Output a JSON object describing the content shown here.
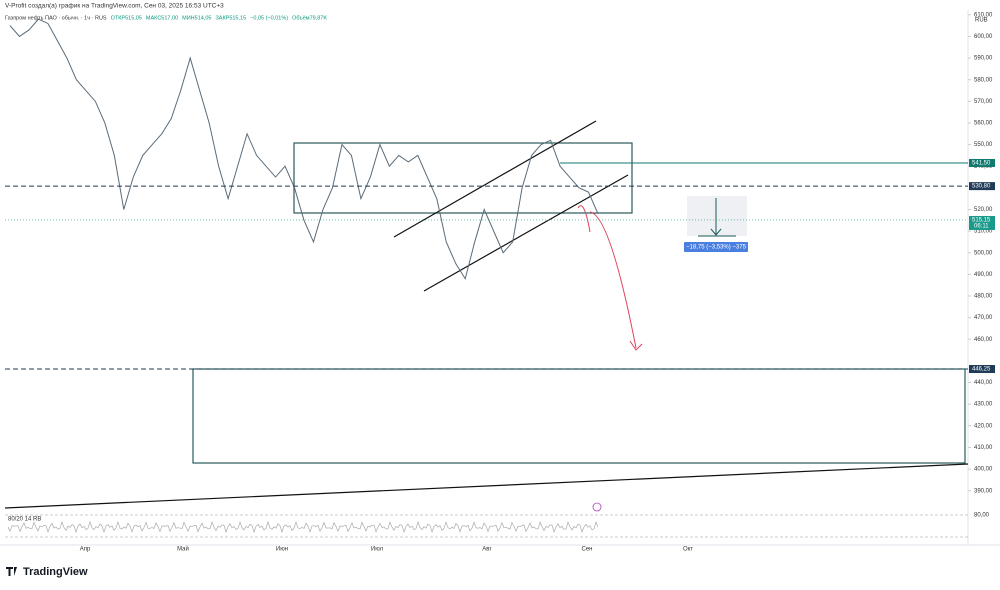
{
  "watermark": "V-Profit создал(а) график на TradingView.com, Сен 03, 2025 16:53 UTC+3",
  "legend": {
    "symbol": "Газпром нефть ПАО · обычн. · 1ч · RUS",
    "open": "ОТКР515,05",
    "high": "МАКС517,00",
    "low": "МИН514,05",
    "close": "ЗАКР515,15",
    "change": "−0,05 (−0,01%)",
    "volume": "Объём79,87K"
  },
  "currency": "RUB",
  "chart_data": {
    "type": "line",
    "color": "#5a6b78",
    "values": [
      605,
      600,
      603,
      608,
      606,
      598,
      590,
      580,
      575,
      570,
      560,
      545,
      520,
      535,
      545,
      550,
      555,
      562,
      575,
      590,
      575,
      560,
      540,
      525,
      540,
      555,
      545,
      540,
      535,
      540,
      530,
      515,
      505,
      520,
      530,
      550,
      545,
      525,
      535,
      550,
      540,
      545,
      542,
      545,
      535,
      525,
      505,
      495,
      488,
      505,
      520,
      510,
      500,
      505,
      530,
      545,
      550,
      552,
      540,
      535,
      530,
      528,
      518
    ],
    "x_labels": [
      "Апр",
      "Май",
      "Июн",
      "Июл",
      "Авг",
      "Сен",
      "Окт"
    ],
    "ylim": [
      385,
      615
    ],
    "yticks": [
      {
        "value": 390,
        "label": "390,00"
      },
      {
        "value": 400,
        "label": "400,00"
      },
      {
        "value": 410,
        "label": "410,00"
      },
      {
        "value": 420,
        "label": "420,00"
      },
      {
        "value": 430,
        "label": "430,00"
      },
      {
        "value": 440,
        "label": "440,00"
      },
      {
        "value": 460,
        "label": "460,00"
      },
      {
        "value": 470,
        "label": "470,00"
      },
      {
        "value": 480,
        "label": "480,00"
      },
      {
        "value": 490,
        "label": "490,00"
      },
      {
        "value": 500,
        "label": "500,00"
      },
      {
        "value": 510,
        "label": "510,00"
      },
      {
        "value": 520,
        "label": "520,00"
      },
      {
        "value": 540,
        "label": "540,00"
      },
      {
        "value": 550,
        "label": "550,00"
      },
      {
        "value": 560,
        "label": "560,00"
      },
      {
        "value": 570,
        "label": "570,00"
      },
      {
        "value": 580,
        "label": "580,00"
      },
      {
        "value": 590,
        "label": "590,00"
      },
      {
        "value": 600,
        "label": "600,00"
      },
      {
        "value": 610,
        "label": "610,00"
      }
    ],
    "price_labels": [
      {
        "value": 541.5,
        "label": "541,50",
        "color": "#0f7a6e"
      },
      {
        "value": 530.8,
        "label": "530,80",
        "color": "#1f3b57"
      },
      {
        "value": 515.15,
        "label": "515,15",
        "color": "#1a9a8a"
      },
      {
        "value": 446.25,
        "label": "446,25",
        "color": "#1f3b57"
      }
    ],
    "countdown": "06:11",
    "measure": "−18,75 (−3,53%) −375",
    "rsi_title": "80/20 14 RB",
    "rsi_level": "80,00"
  },
  "logo": "TradingView"
}
